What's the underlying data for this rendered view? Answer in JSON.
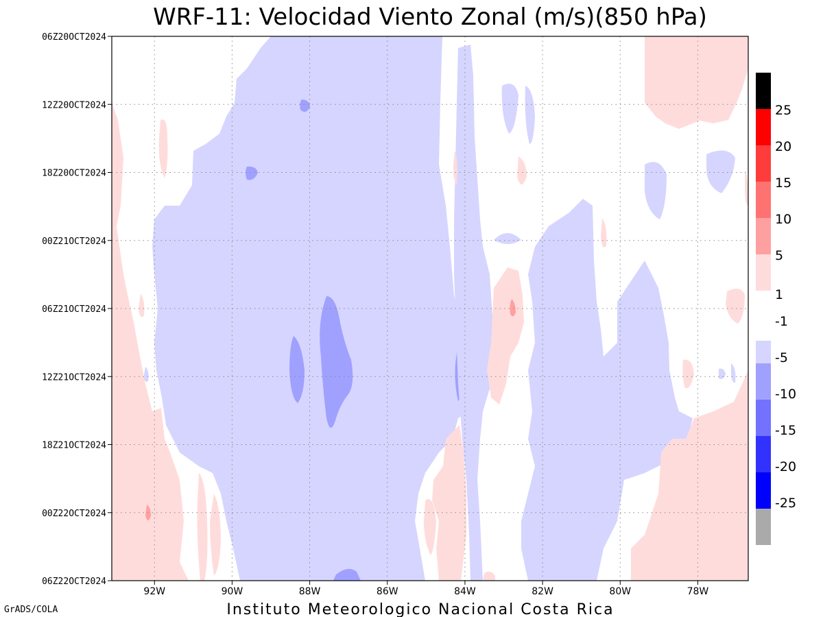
{
  "chart_data": {
    "type": "heatmap",
    "title": "WRF-11: Velocidad  Viento Zonal (m/s)(850 hPa)",
    "footer": "Instituto Meteorologico Nacional Costa Rica",
    "credit": "GrADS/COLA",
    "x_ticks": [
      "92W",
      "90W",
      "88W",
      "86W",
      "84W",
      "82W",
      "80W",
      "78W"
    ],
    "x_tick_values": [
      -92,
      -90,
      -88,
      -86,
      -84,
      -82,
      -80,
      -78
    ],
    "xlim": [
      -93.1,
      -76.7
    ],
    "y_ticks": [
      "06Z20OCT2024",
      "12Z20OCT2024",
      "18Z20OCT2024",
      "00Z21OCT2024",
      "06Z21OCT2024",
      "12Z21OCT2024",
      "18Z21OCT2024",
      "00Z22OCT2024",
      "06Z22OCT2024"
    ],
    "grid": true,
    "colorbar": {
      "colors": [
        "#aaaaaa",
        "#0000ff",
        "#3232ff",
        "#7272ff",
        "#a0a0ff",
        "#d5d5ff",
        "#ffffff",
        "#ffdcdc",
        "#ffa0a0",
        "#ff7272",
        "#ff3c3c",
        "#ff0000",
        "#000000"
      ],
      "labels": [
        "-25",
        "-20",
        "-15",
        "-10",
        "-5",
        "-1",
        "1",
        "5",
        "10",
        "15",
        "20",
        "25"
      ]
    },
    "field": {
      "description_levels": {
        "weak_east": "#d5d5ff",
        "mod_east": "#a0a0ff",
        "strong_east": "#7272ff",
        "weak_west": "#ffdcdc",
        "mod_west": "#ffa0a0",
        "strong_west": "#ff7272"
      },
      "regions": [
        {
          "level": "weak_west",
          "lon_range": [
            -93.1,
            -91.8
          ],
          "time_range": [
            "12Z20OCT2024",
            "06Z22OCT2024"
          ]
        },
        {
          "level": "weak_east",
          "lon_range": [
            -91.9,
            -84.2
          ],
          "time_range": [
            "06Z20OCT2024",
            "06Z22OCT2024"
          ]
        },
        {
          "level": "mod_east",
          "lon_range": [
            -88.3,
            -86.8
          ],
          "time_range": [
            "06Z21OCT2024",
            "18Z21OCT2024"
          ]
        },
        {
          "level": "weak_east",
          "lon_range": [
            -84.3,
            -83.8
          ],
          "time_range": [
            "06Z20OCT2024",
            "06Z22OCT2024"
          ]
        },
        {
          "level": "weak_west",
          "lon_range": [
            -84.9,
            -83.7
          ],
          "time_range": [
            "18Z21OCT2024",
            "06Z22OCT2024"
          ]
        },
        {
          "level": "weak_west",
          "lon_range": [
            -83.2,
            -82.5
          ],
          "time_range": [
            "00Z21OCT2024",
            "18Z21OCT2024"
          ]
        },
        {
          "level": "mod_west",
          "lon_range": [
            -82.9,
            -82.7
          ],
          "time_range": [
            "06Z21OCT2024",
            "06Z21OCT2024"
          ]
        },
        {
          "level": "weak_east",
          "lon_range": [
            -82.5,
            -80.2
          ],
          "time_range": [
            "18Z20OCT2024",
            "06Z22OCT2024"
          ]
        },
        {
          "level": "weak_west",
          "lon_range": [
            -79.3,
            -76.7
          ],
          "time_range": [
            "06Z20OCT2024",
            "12Z20OCT2024"
          ]
        },
        {
          "level": "weak_west",
          "lon_range": [
            -79.3,
            -76.7
          ],
          "time_range": [
            "18Z21OCT2024",
            "06Z22OCT2024"
          ]
        }
      ]
    }
  }
}
